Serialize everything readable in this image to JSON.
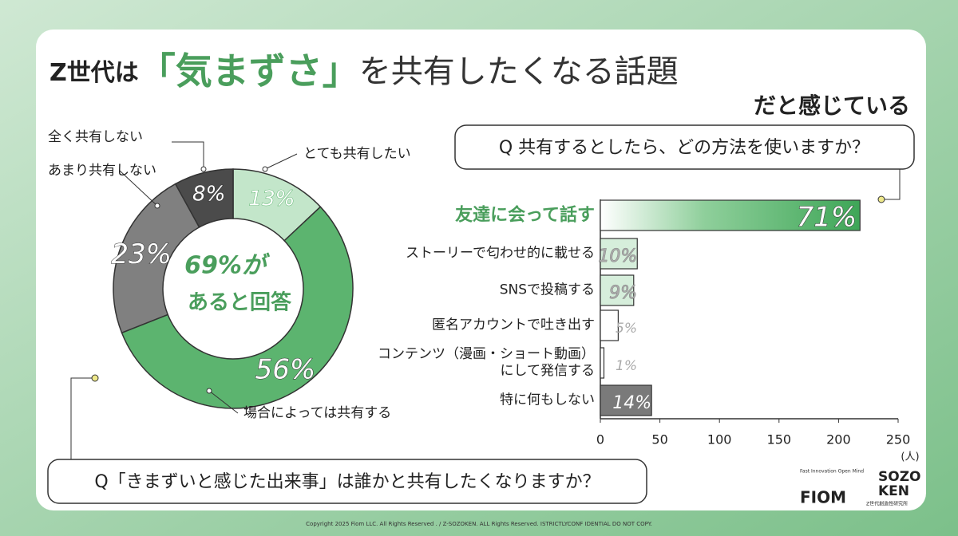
{
  "header": {
    "title_1": "Z世代は",
    "title_2": "「気まずさ」",
    "title_3": "を共有したくなる話題",
    "title_4": "だと感じている"
  },
  "chart_data": [
    {
      "type": "pie",
      "title": "Q「きまずいと感じた出来事」は誰かと共有したくなりますか？",
      "categories": [
        "とても共有したい",
        "場合によっては共有する",
        "あまり共有しない",
        "全く共有しない"
      ],
      "values": [
        13,
        56,
        23,
        8
      ],
      "value_labels": [
        "13%",
        "56%",
        "23%",
        "8%"
      ],
      "colors": [
        "#c3e6ca",
        "#5cb46f",
        "#808080",
        "#4b4b4b"
      ],
      "center_label": [
        "69%が",
        "あると回答"
      ]
    },
    {
      "type": "hbar",
      "title": "Q 共有するとしたら、どの方法を使いますか？",
      "categories": [
        "友達に会って話す",
        "ストーリーで匂わせ的に載せる",
        "SNSで投稿する",
        "匿名アカウントで吐き出す",
        "コンテンツ（漫画・ショート動画）\nにして発信する",
        "特に何もしない"
      ],
      "values": [
        218,
        31,
        28,
        15,
        3,
        43
      ],
      "value_labels": [
        "71%",
        "10%",
        "9%",
        "5%",
        "1%",
        "14%"
      ],
      "colors": [
        "#4caf64",
        "#d6eedb",
        "#d6eedb",
        "#ffffff",
        "#ffffff",
        "#7a7a7a"
      ],
      "xlim": [
        0,
        250
      ],
      "xticks": [
        0,
        50,
        100,
        150,
        200,
        250
      ],
      "x_label": "(人)"
    }
  ],
  "logos": {
    "fiom_tagline": "Fast Innovation Open Mind",
    "fiom": "FIOM",
    "sozo": "SOZO",
    "ken": "KEN",
    "sozoken_sub": "Z世代創造性研究所"
  },
  "footer": "Copyright 2025 Fiom LLC. All Rights Reserved . / Z-SOZOKEN. ALL Rights Reserved. ISTRICTLYCONF IDENTIAL DO NOT COPY."
}
